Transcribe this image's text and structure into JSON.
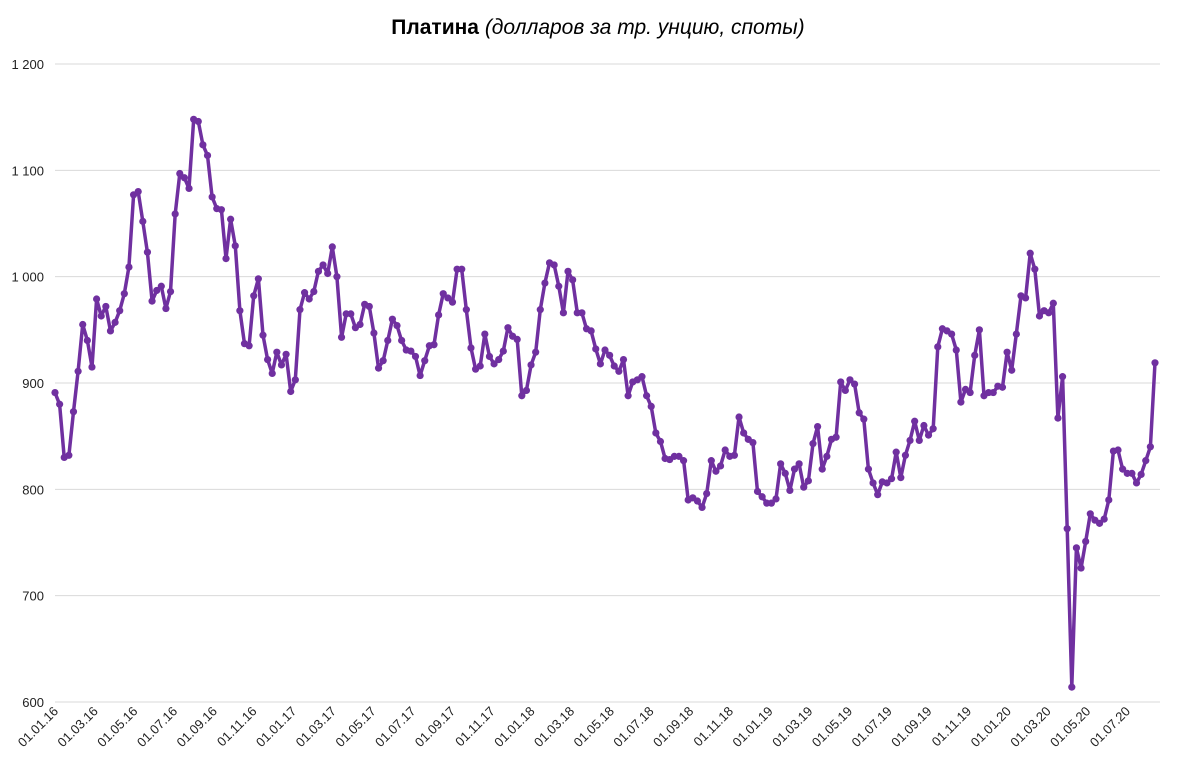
{
  "chart_data": {
    "type": "line",
    "title_bold": "Платина",
    "title_italic": "(долларов за тр. унцию, споты)",
    "xlabel": "",
    "ylabel": "",
    "ylim": [
      600,
      1200
    ],
    "yticks": [
      600,
      700,
      800,
      900,
      1000,
      1100,
      1200
    ],
    "ytick_labels": [
      "600",
      "700",
      "800",
      "900",
      "1 000",
      "1 100",
      "1 200"
    ],
    "xtick_labels": [
      "01.01.16",
      "01.03.16",
      "01.05.16",
      "01.07.16",
      "01.09.16",
      "01.11.16",
      "01.01.17",
      "01.03.17",
      "01.05.17",
      "01.07.17",
      "01.09.17",
      "01.11.17",
      "01.01.18",
      "01.03.18",
      "01.05.18",
      "01.07.18",
      "01.09.18",
      "01.11.18",
      "01.01.19",
      "01.03.19",
      "01.05.19",
      "01.07.19",
      "01.09.19",
      "01.11.19",
      "01.01.20",
      "01.03.20",
      "01.05.20",
      "01.07.20"
    ],
    "grid": true,
    "legend": "none",
    "color": "#7030A0",
    "grid_color": "#d9d9d9",
    "series": [
      {
        "name": "Платина",
        "frequency": "weekly",
        "values": [
          891,
          880,
          830,
          832,
          873,
          911,
          955,
          940,
          915,
          979,
          963,
          972,
          949,
          957,
          968,
          984,
          1009,
          1077,
          1080,
          1052,
          1023,
          977,
          987,
          991,
          970,
          986,
          1059,
          1097,
          1093,
          1083,
          1148,
          1146,
          1124,
          1114,
          1075,
          1064,
          1063,
          1017,
          1054,
          1029,
          968,
          937,
          935,
          982,
          998,
          945,
          922,
          909,
          929,
          917,
          927,
          892,
          903,
          969,
          985,
          979,
          986,
          1005,
          1011,
          1003,
          1028,
          1000,
          943,
          965,
          965,
          952,
          955,
          974,
          972,
          947,
          914,
          921,
          940,
          960,
          954,
          940,
          931,
          930,
          925,
          907,
          921,
          935,
          936,
          964,
          984,
          980,
          976,
          1007,
          1007,
          969,
          933,
          913,
          916,
          946,
          925,
          918,
          922,
          930,
          952,
          944,
          941,
          888,
          893,
          917,
          929,
          969,
          994,
          1013,
          1011,
          991,
          966,
          1005,
          997,
          966,
          966,
          951,
          949,
          932,
          918,
          931,
          926,
          916,
          911,
          922,
          888,
          901,
          903,
          906,
          888,
          878,
          853,
          845,
          829,
          828,
          831,
          831,
          827,
          790,
          792,
          789,
          783,
          796,
          827,
          817,
          822,
          837,
          831,
          832,
          868,
          853,
          847,
          844,
          798,
          793,
          787,
          787,
          791,
          824,
          815,
          799,
          819,
          824,
          802,
          808,
          843,
          859,
          819,
          831,
          847,
          849,
          901,
          893,
          903,
          899,
          872,
          866,
          819,
          806,
          795,
          807,
          806,
          810,
          835,
          811,
          832,
          846,
          864,
          846,
          860,
          851,
          857,
          934,
          951,
          949,
          946,
          931,
          882,
          894,
          891,
          926,
          950,
          888,
          891,
          891,
          897,
          896,
          929,
          912,
          946,
          982,
          980,
          1022,
          1007,
          963,
          968,
          966,
          975,
          867,
          906,
          763,
          614,
          745,
          726,
          751,
          777,
          771,
          768,
          772,
          790,
          836,
          837,
          819,
          815,
          815,
          806,
          814,
          827,
          840,
          919
        ]
      }
    ]
  }
}
